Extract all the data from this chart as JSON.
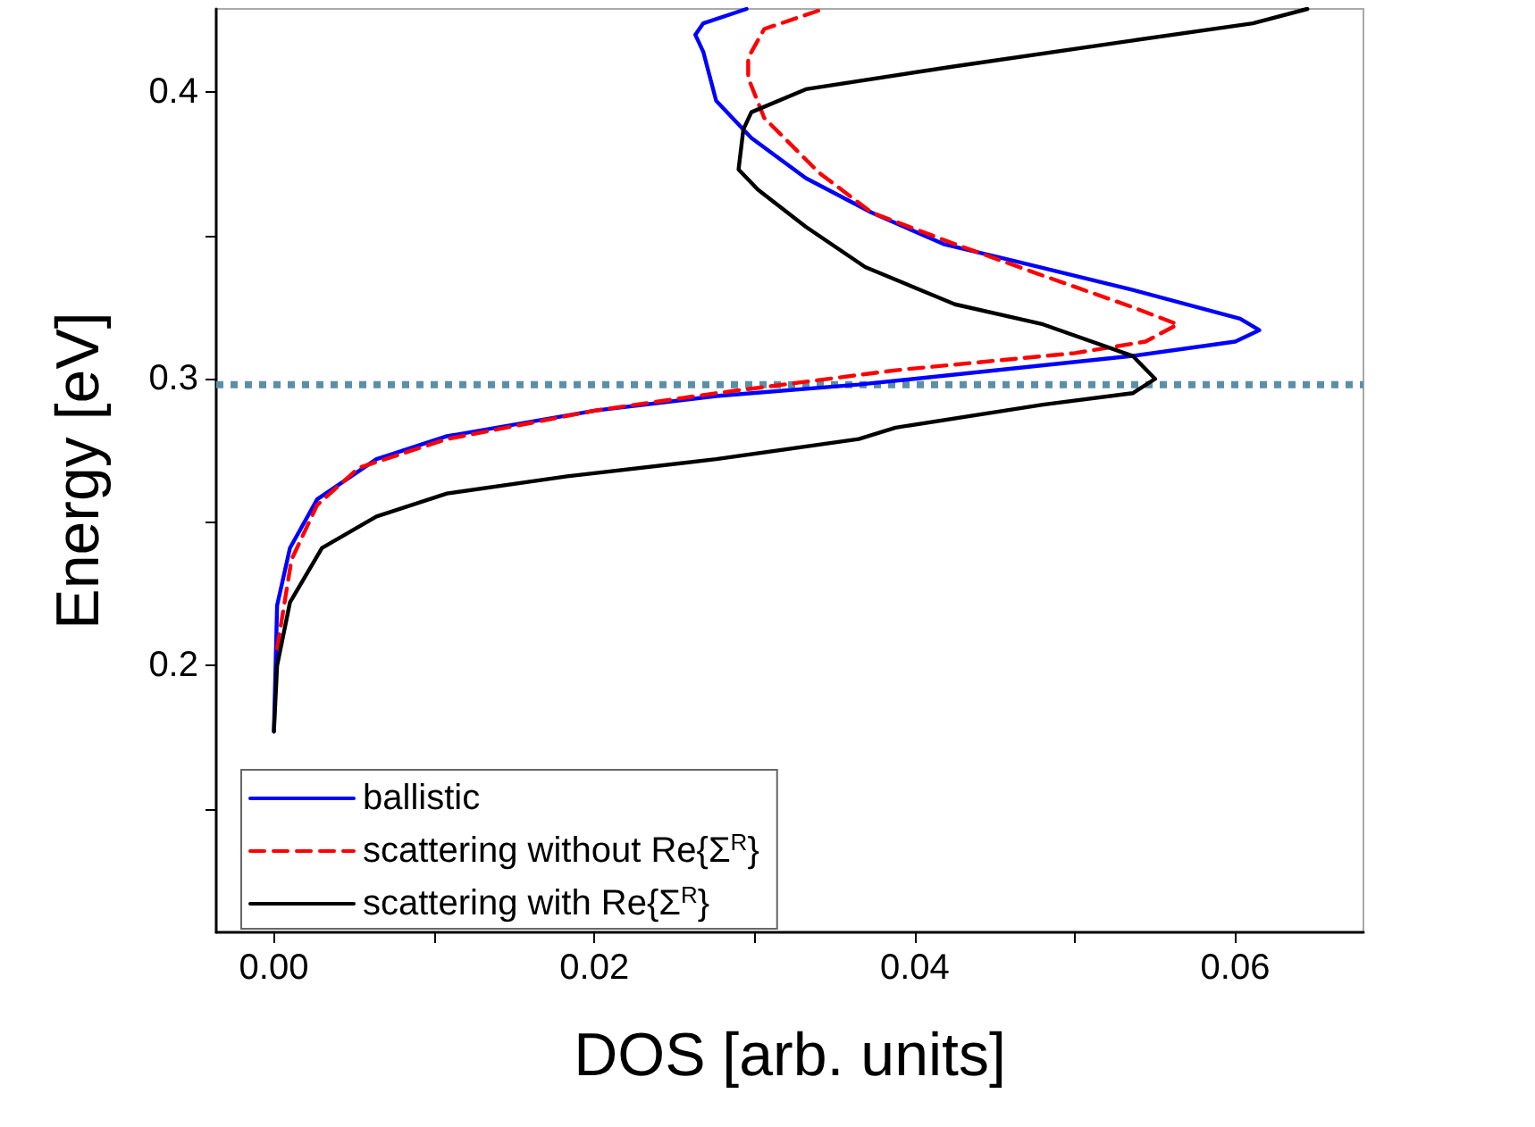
{
  "chart_data": {
    "type": "line",
    "xlabel": "DOS [arb. units]",
    "ylabel": "Energy [eV]",
    "xlim": [
      -0.0036,
      0.068
    ],
    "ylim": [
      0.107,
      0.429
    ],
    "xticks": [
      {
        "value": 0,
        "label": "0.00"
      },
      {
        "value": 0.01,
        "label": null
      },
      0.02,
      {
        "value": 0.03,
        "label": null
      },
      0.04,
      {
        "value": 0.05,
        "label": null
      },
      0.06
    ],
    "yticks": [
      {
        "value": 0.15,
        "label": null
      },
      0.2,
      {
        "value": 0.25,
        "label": null
      },
      0.3,
      {
        "value": 0.35,
        "label": null
      },
      0.4
    ],
    "grid": false,
    "legend": "bottom left",
    "marker": "none",
    "ref_lines": [
      {
        "axis": "y",
        "value": 0.298,
        "label": null,
        "color": "#5b8fa8",
        "line_style": "dotted"
      }
    ],
    "series": [
      {
        "name": "ballistic",
        "color": "#0000ff",
        "line_style": "solid",
        "x": [
          0,
          0.0002,
          0.001,
          0.0027,
          0.0064,
          0.0108,
          0.0201,
          0.0276,
          0.0365,
          0.0536,
          0.06,
          0.0615,
          0.0603,
          0.0536,
          0.0463,
          0.0418,
          0.0373,
          0.0332,
          0.0298,
          0.0276,
          0.0268,
          0.0263,
          0.0268,
          0.0295
        ],
        "values": [
          0.177,
          0.221,
          0.241,
          0.258,
          0.272,
          0.28,
          0.289,
          0.294,
          0.298,
          0.308,
          0.313,
          0.317,
          0.321,
          0.331,
          0.341,
          0.347,
          0.358,
          0.37,
          0.384,
          0.397,
          0.414,
          0.42,
          0.424,
          0.429
        ]
      },
      {
        "name": "scattering without Re{Σ$^{R}$}",
        "color": "#ff0000",
        "line_style": "dashed",
        "x": [
          0.0002,
          0.0011,
          0.0027,
          0.0053,
          0.0108,
          0.0201,
          0.0276,
          0.0388,
          0.05,
          0.0544,
          0.0564,
          0.0536,
          0.048,
          0.0425,
          0.0373,
          0.034,
          0.0306,
          0.0296,
          0.0296,
          0.0306,
          0.0343
        ],
        "values": [
          0.206,
          0.237,
          0.256,
          0.269,
          0.279,
          0.289,
          0.295,
          0.303,
          0.309,
          0.313,
          0.319,
          0.325,
          0.336,
          0.347,
          0.358,
          0.372,
          0.391,
          0.405,
          0.412,
          0.422,
          0.429
        ]
      },
      {
        "name": "scattering with Re{Σ$^{R}$}",
        "color": "#000000",
        "line_style": "solid",
        "x": [
          0,
          0.0002,
          0.001,
          0.003,
          0.0064,
          0.0108,
          0.0183,
          0.0276,
          0.0365,
          0.0388,
          0.048,
          0.0536,
          0.055,
          0.0536,
          0.048,
          0.0425,
          0.0369,
          0.0332,
          0.0302,
          0.029,
          0.0293,
          0.0298,
          0.0332,
          0.0425,
          0.0536,
          0.0611,
          0.0645
        ],
        "values": [
          0.177,
          0.2,
          0.222,
          0.241,
          0.252,
          0.26,
          0.266,
          0.272,
          0.279,
          0.283,
          0.291,
          0.295,
          0.3,
          0.308,
          0.319,
          0.326,
          0.339,
          0.353,
          0.366,
          0.373,
          0.387,
          0.393,
          0.401,
          0.409,
          0.418,
          0.424,
          0.429
        ]
      }
    ]
  }
}
